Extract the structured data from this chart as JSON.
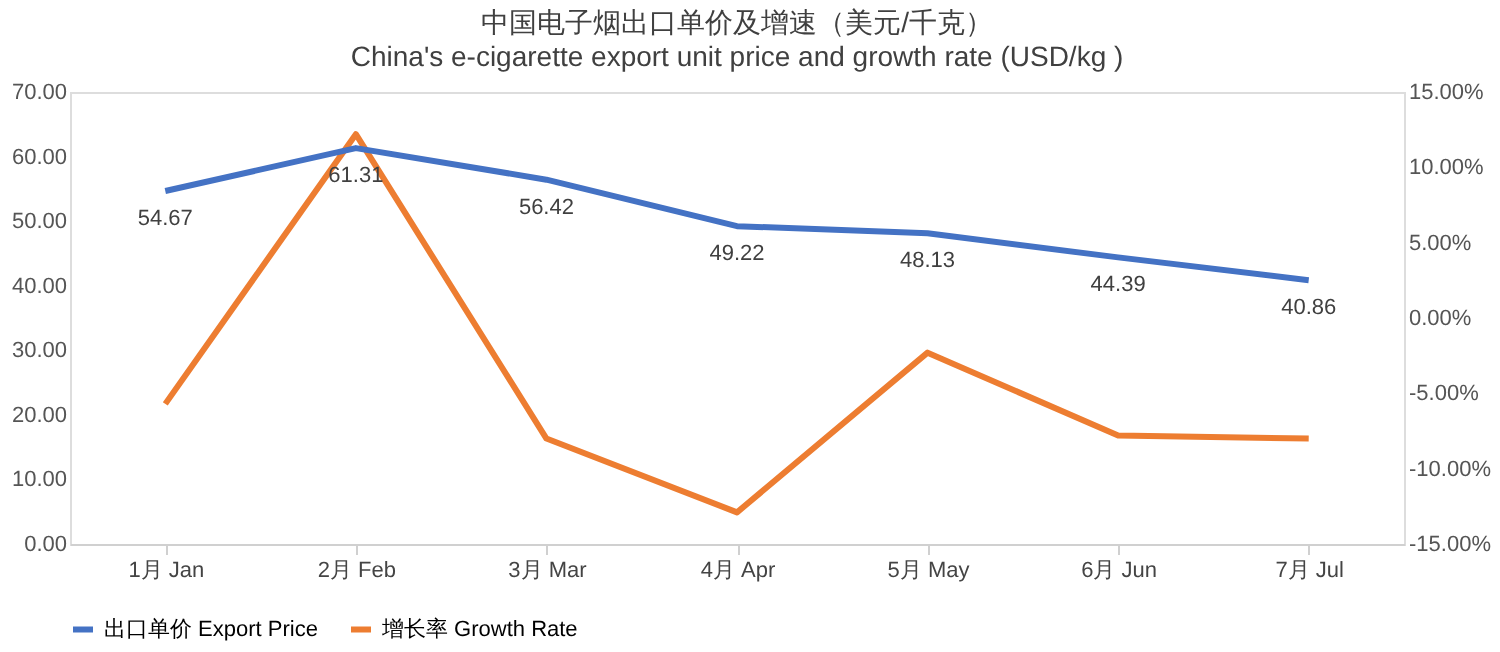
{
  "chart_data": {
    "type": "line",
    "title": "中国电子烟出口单价及增速（美元/千克）",
    "subtitle": "China's e-cigarette export unit price and growth rate (USD/kg )",
    "categories": [
      "1月 Jan",
      "2月 Feb",
      "3月 Mar",
      "4月 Apr",
      "5月 May",
      "6月 Jun",
      "7月 Jul"
    ],
    "series": [
      {
        "name": "出口单价 Export Price",
        "color": "#4472c4",
        "values": [
          54.67,
          61.31,
          56.42,
          49.22,
          48.13,
          44.39,
          40.86
        ],
        "value_labels": [
          "54.67",
          "61.31",
          "56.42",
          "49.22",
          "48.13",
          "44.39",
          "40.86"
        ]
      },
      {
        "name": "增长率 Growth Rate",
        "color": "#ed7d31",
        "axis": "y2",
        "values": [
          -5.7,
          12.2,
          -8.0,
          -12.9,
          -2.3,
          -7.8,
          -8.0
        ]
      }
    ],
    "ylim": [
      0,
      70
    ],
    "yticks": [
      {
        "value": 0,
        "label": "0.00"
      },
      {
        "value": 10,
        "label": "10.00"
      },
      {
        "value": 20,
        "label": "20.00"
      },
      {
        "value": 30,
        "label": "30.00"
      },
      {
        "value": 40,
        "label": "40.00"
      },
      {
        "value": 50,
        "label": "50.00"
      },
      {
        "value": 60,
        "label": "60.00"
      },
      {
        "value": 70,
        "label": "70.00"
      }
    ],
    "y2lim": [
      -15,
      15
    ],
    "y2ticks": [
      {
        "value": -15,
        "label": "-15.00%"
      },
      {
        "value": -10,
        "label": "-10.00%"
      },
      {
        "value": -5,
        "label": "-5.00%"
      },
      {
        "value": 0,
        "label": "0.00%"
      },
      {
        "value": 5,
        "label": "5.00%"
      },
      {
        "value": 10,
        "label": "10.00%"
      },
      {
        "value": 15,
        "label": "15.00%"
      }
    ],
    "grid": false,
    "legend": "bottom",
    "marker": "none",
    "line_style": "solid"
  }
}
